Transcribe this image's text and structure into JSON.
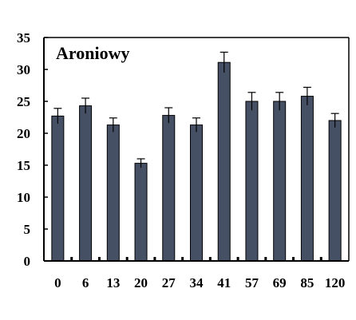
{
  "chart_data": {
    "type": "bar",
    "title": "Aroniowy",
    "xlabel": "",
    "ylabel": "",
    "categories": [
      "0",
      "6",
      "13",
      "20",
      "27",
      "34",
      "41",
      "57",
      "69",
      "85",
      "120"
    ],
    "values": [
      22.7,
      24.3,
      21.3,
      15.3,
      22.8,
      21.3,
      31.1,
      25.0,
      25.0,
      25.8,
      22.0
    ],
    "errors": [
      1.2,
      1.2,
      1.1,
      0.7,
      1.2,
      1.1,
      1.6,
      1.4,
      1.4,
      1.4,
      1.1
    ],
    "ylim": [
      0,
      35
    ],
    "yticks": [
      "0",
      "5",
      "10",
      "15",
      "20",
      "25",
      "30",
      "35"
    ],
    "grid": false,
    "legend": "none",
    "bar_color": "#465064",
    "axis_color": "#000000"
  }
}
